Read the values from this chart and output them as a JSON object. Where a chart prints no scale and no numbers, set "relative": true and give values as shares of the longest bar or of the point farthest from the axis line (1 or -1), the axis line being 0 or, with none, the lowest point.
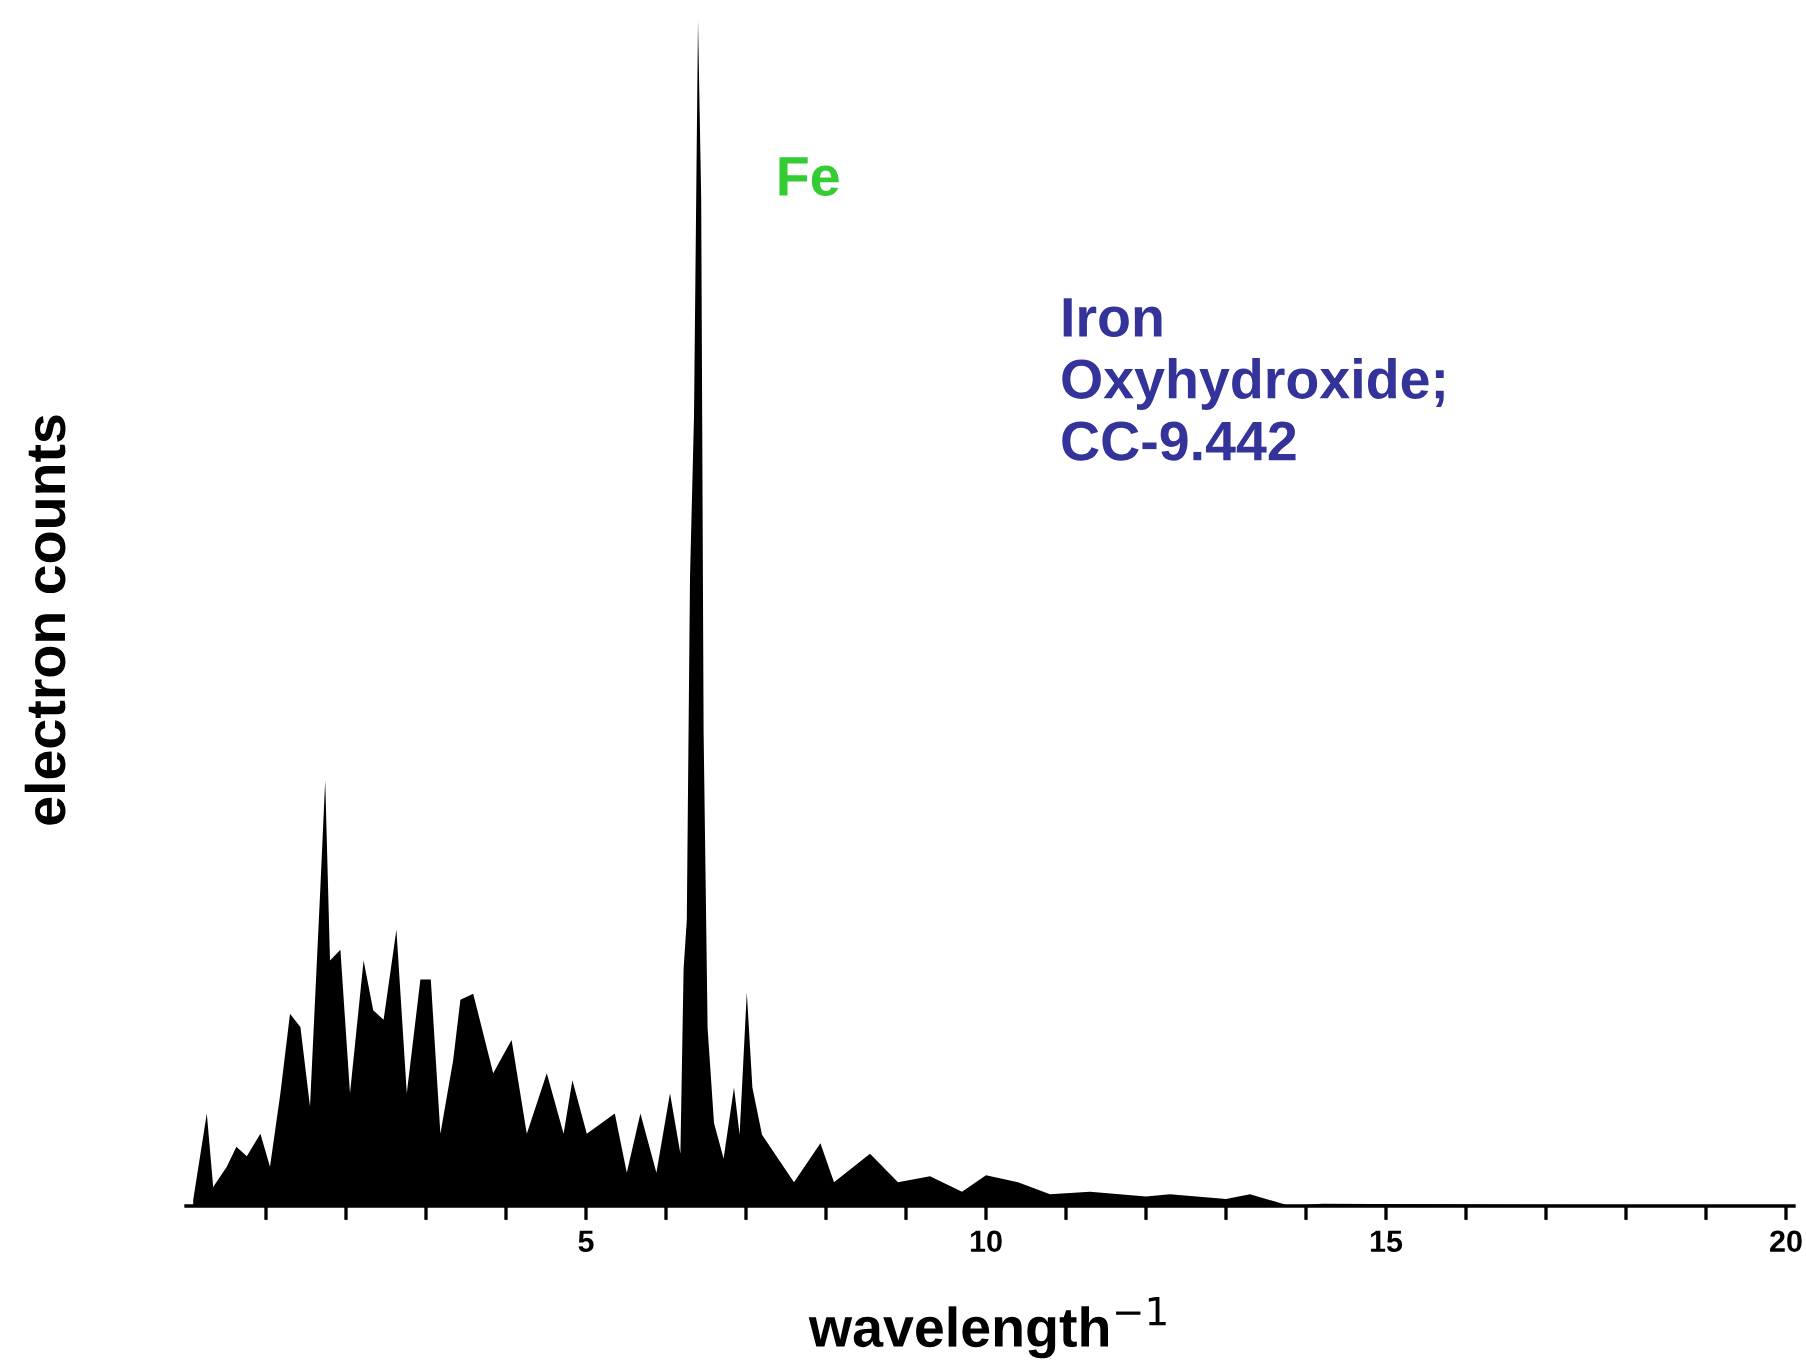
{
  "chart_data": {
    "type": "area",
    "relative": true,
    "xlabel": "wavelength$^{−1}$",
    "ylabel": "electron counts",
    "annotations": [
      {
        "text": "Fe",
        "x": 6.4,
        "y": 1.0
      },
      "Iron\nOxyhydroxide;\nCC-9.442"
    ],
    "x": [
      0.09,
      0.26,
      0.34,
      0.51,
      0.63,
      0.76,
      0.93,
      1.05,
      1.18,
      1.3,
      1.43,
      1.55,
      1.68,
      1.74,
      1.8,
      1.93,
      2.05,
      2.22,
      2.34,
      2.47,
      2.63,
      2.76,
      2.93,
      3.06,
      3.18,
      3.34,
      3.43,
      3.59,
      3.84,
      4.07,
      4.26,
      4.51,
      4.72,
      4.83,
      5.01,
      5.36,
      5.51,
      5.68,
      5.88,
      6.05,
      6.18,
      6.22,
      6.26,
      6.3,
      6.35,
      6.4,
      6.44,
      6.47,
      6.52,
      6.6,
      6.72,
      6.85,
      6.92,
      7.01,
      7.08,
      7.2,
      7.4,
      7.6,
      7.93,
      8.1,
      8.55,
      8.9,
      9.3,
      9.7,
      10.0,
      10.4,
      10.8,
      11.3,
      12.0,
      12.3,
      13.0,
      13.3,
      13.8,
      14.2,
      20.0
    ],
    "series": [
      {
        "color": "#000000",
        "values": [
          0.005,
          0.078,
          0.016,
          0.033,
          0.05,
          0.042,
          0.061,
          0.033,
          0.095,
          0.162,
          0.151,
          0.084,
          0.269,
          0.359,
          0.207,
          0.216,
          0.095,
          0.207,
          0.165,
          0.157,
          0.233,
          0.095,
          0.191,
          0.191,
          0.061,
          0.123,
          0.174,
          0.179,
          0.112,
          0.14,
          0.061,
          0.112,
          0.061,
          0.106,
          0.061,
          0.078,
          0.028,
          0.078,
          0.028,
          0.095,
          0.044,
          0.2,
          0.241,
          0.53,
          0.666,
          1.0,
          0.85,
          0.4,
          0.15,
          0.07,
          0.04,
          0.1,
          0.06,
          0.18,
          0.1,
          0.06,
          0.04,
          0.02,
          0.053,
          0.02,
          0.044,
          0.02,
          0.025,
          0.012,
          0.026,
          0.02,
          0.01,
          0.012,
          0.008,
          0.01,
          0.006,
          0.01,
          0.0,
          0.002,
          0.0
        ]
      }
    ],
    "xlim": [
      0,
      20.1
    ],
    "xticks": [
      {
        "value": 1,
        "label": null
      },
      {
        "value": 2,
        "label": null
      },
      {
        "value": 3,
        "label": null
      },
      {
        "value": 4,
        "label": null
      },
      5,
      {
        "value": 6,
        "label": null
      },
      {
        "value": 7,
        "label": null
      },
      {
        "value": 8,
        "label": null
      },
      {
        "value": 9,
        "label": null
      },
      10,
      {
        "value": 11,
        "label": null
      },
      {
        "value": 12,
        "label": null
      },
      {
        "value": 13,
        "label": null
      },
      {
        "value": 14,
        "label": null
      },
      15,
      {
        "value": 16,
        "label": null
      },
      {
        "value": 17,
        "label": null
      },
      {
        "value": 18,
        "label": null
      },
      {
        "value": 19,
        "label": null
      },
      20
    ],
    "tick_labels": "x"
  }
}
